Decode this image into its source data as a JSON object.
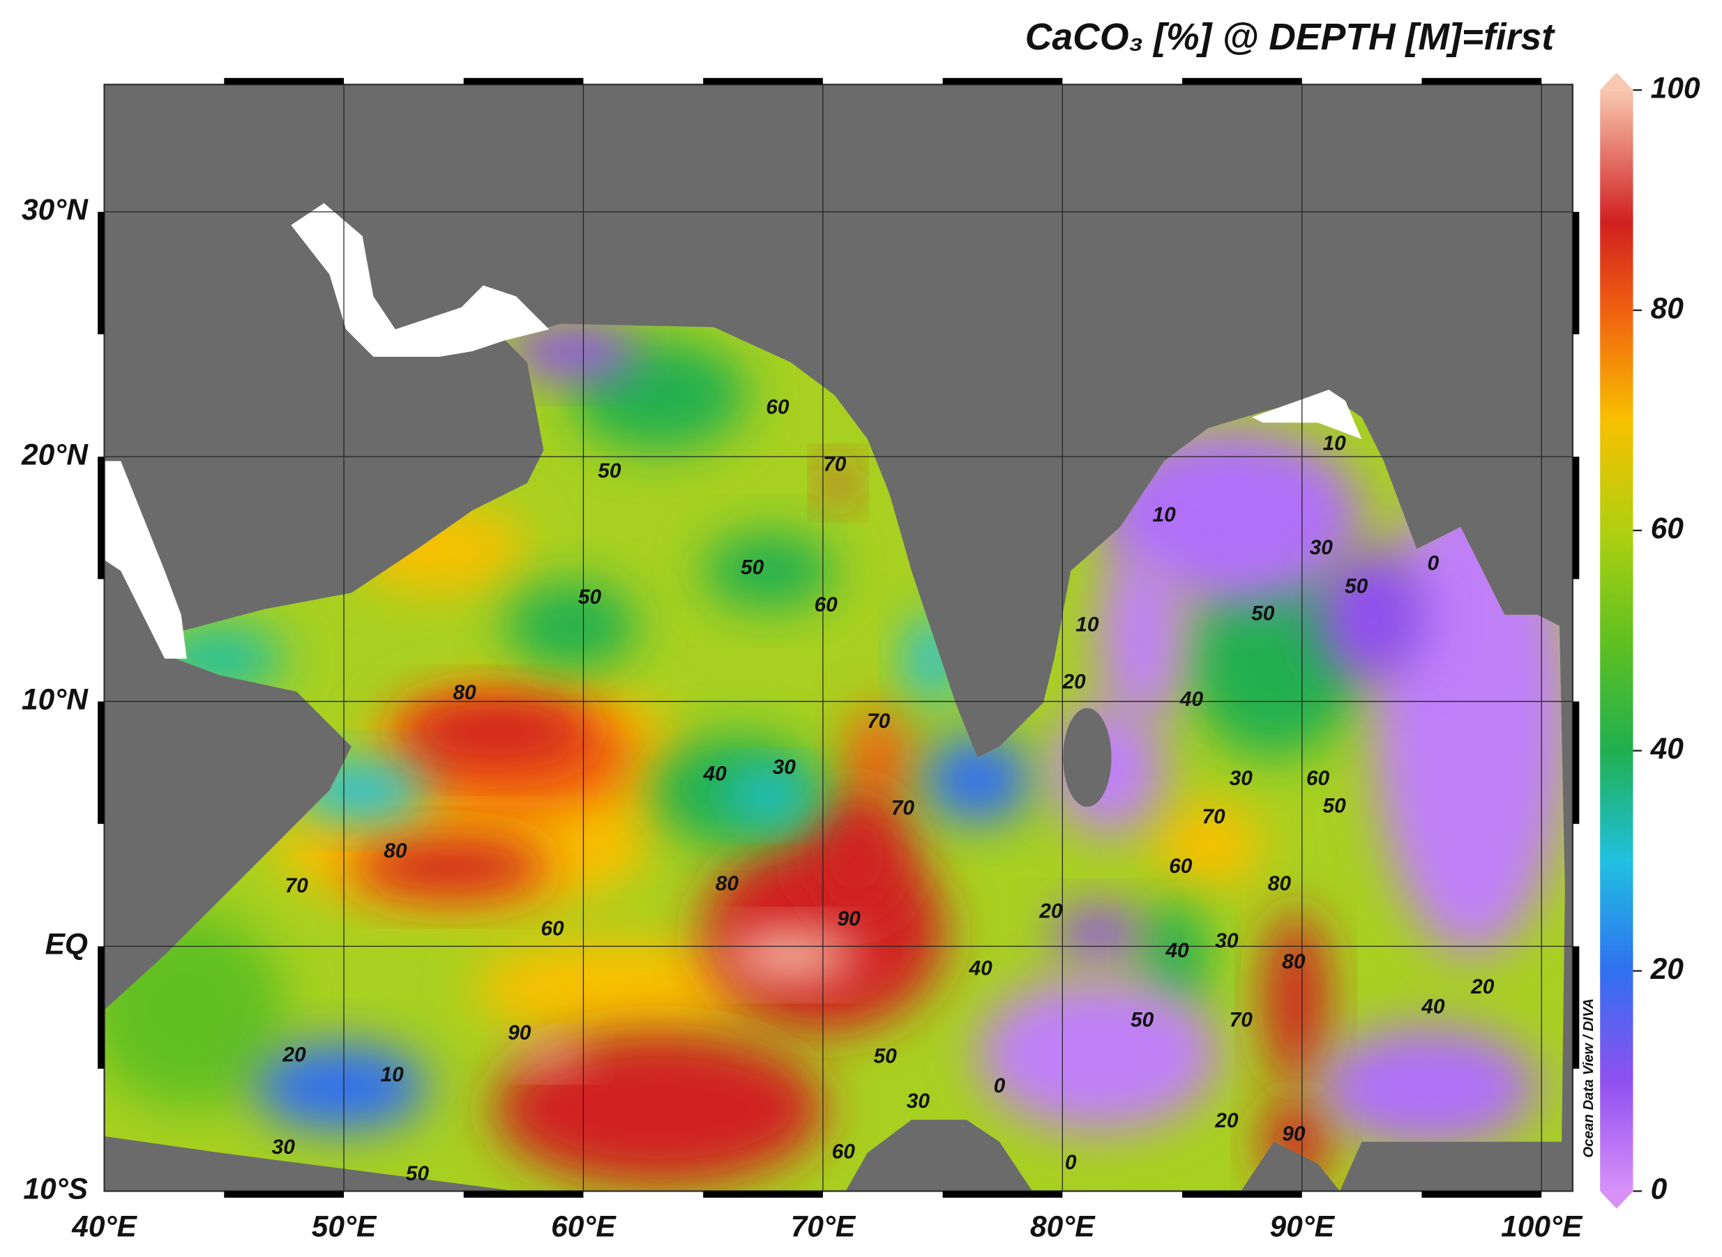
{
  "map": {
    "title": "CaCO₃ [%] @ DEPTH [M]=first",
    "watermark": "Ocean Data View / DIVA",
    "xlim": [
      40,
      101.3
    ],
    "ylim": [
      -10,
      35.2
    ],
    "xticks": [
      {
        "value": 40,
        "label": "40°E"
      },
      {
        "value": 50,
        "label": "50°E"
      },
      {
        "value": 60,
        "label": "60°E"
      },
      {
        "value": 70,
        "label": "70°E"
      },
      {
        "value": 80,
        "label": "80°E"
      },
      {
        "value": 90,
        "label": "90°E"
      },
      {
        "value": 100,
        "label": "100°E"
      }
    ],
    "yticks": [
      {
        "value": -10,
        "label": "10°S"
      },
      {
        "value": 0,
        "label": "EQ"
      },
      {
        "value": 10,
        "label": "10°N"
      },
      {
        "value": 20,
        "label": "20°N"
      },
      {
        "value": 30,
        "label": "30°N"
      }
    ],
    "colorbar": {
      "range": [
        0,
        100
      ],
      "ticks": [
        0,
        20,
        40,
        60,
        80,
        100
      ]
    },
    "contour_labels": [
      80,
      80,
      70,
      60,
      90,
      20,
      10,
      30,
      50,
      50,
      50,
      50,
      60,
      60,
      70,
      70,
      70,
      40,
      30,
      80,
      90,
      40,
      50,
      30,
      60,
      20,
      0,
      0,
      20,
      10,
      20,
      10,
      10,
      30,
      50,
      50,
      40,
      30,
      60,
      50,
      70,
      60,
      80,
      30,
      40,
      80,
      70,
      50,
      40,
      20,
      90,
      0
    ]
  }
}
